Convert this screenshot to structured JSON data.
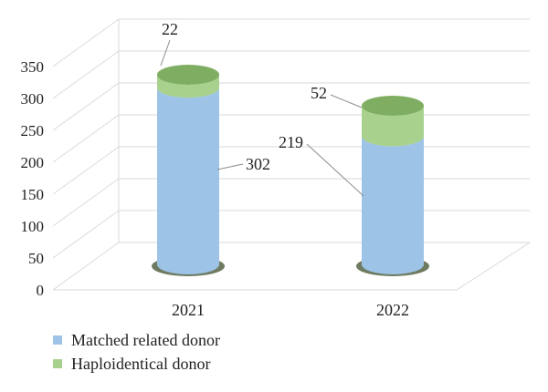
{
  "colors": {
    "matched": "#9dc3e6",
    "haplo": "#a9d18e",
    "grid": "#d9d9d9",
    "shadow": "#4a5a3a"
  },
  "chart_data": {
    "type": "bar",
    "style": "3d-cylinder-stacked",
    "categories": [
      "2021",
      "2022"
    ],
    "series": [
      {
        "name": "Matched related donor",
        "values": [
          302,
          219
        ],
        "color_key": "matched"
      },
      {
        "name": "Haploidentical donor",
        "values": [
          22,
          52
        ],
        "color_key": "haplo"
      }
    ],
    "data_labels": [
      [
        "302",
        "219"
      ],
      [
        "22",
        "52"
      ]
    ],
    "yticks": [
      "0",
      "50",
      "100",
      "150",
      "200",
      "250",
      "300",
      "350"
    ],
    "ylim": [
      0,
      350
    ],
    "grid": true,
    "legend": "bottom-left"
  }
}
